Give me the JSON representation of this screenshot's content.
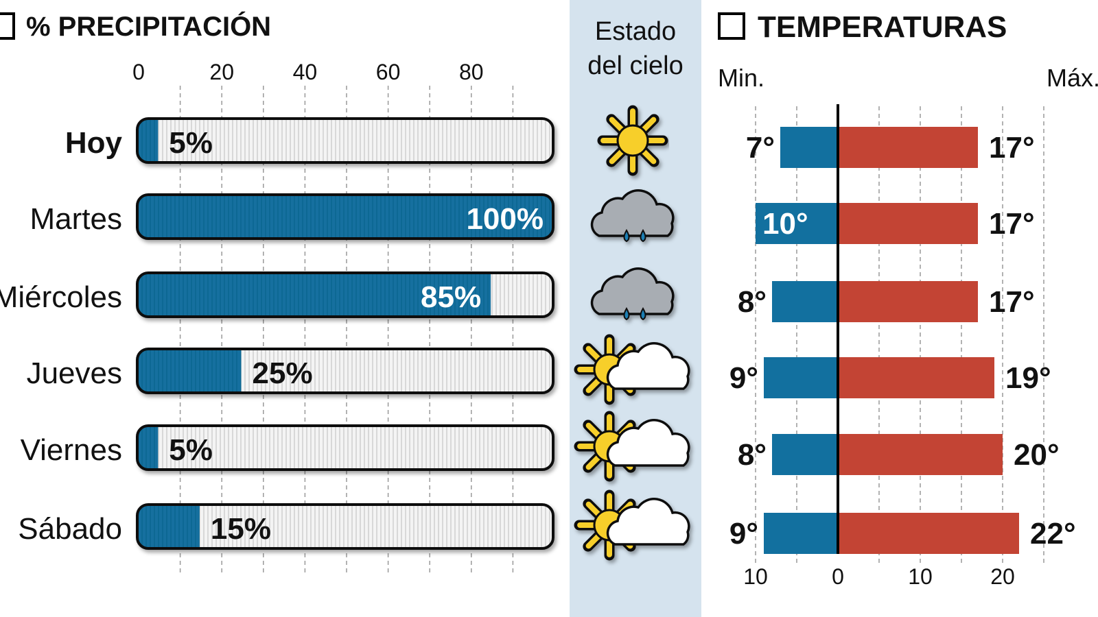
{
  "colors": {
    "min": "#12709f",
    "max": "#c34434",
    "precip_fill": "#12709f",
    "sky_bg": "#d5e3ee",
    "axis": "#000000"
  },
  "chart_data": [
    {
      "type": "bar",
      "title": "% PRECIPITACIÓN",
      "categories": [
        "Hoy",
        "Martes",
        "Miércoles",
        "Jueves",
        "Viernes",
        "Sábado"
      ],
      "values": [
        5,
        100,
        85,
        25,
        5,
        15
      ],
      "value_labels": [
        "5%",
        "100%",
        "85%",
        "25%",
        "5%",
        "15%"
      ],
      "xticks": [
        "0",
        "20",
        "40",
        "60",
        "80"
      ],
      "xlim": [
        0,
        100
      ],
      "grid": true
    },
    {
      "type": "table",
      "title": "Estado del cielo",
      "title_lines": [
        "Estado",
        "del cielo"
      ],
      "categories": [
        "Hoy",
        "Martes",
        "Miércoles",
        "Jueves",
        "Viernes",
        "Sábado"
      ],
      "icons": [
        "sun-icon",
        "rain-cloud-icon",
        "rain-cloud-icon",
        "sun-cloud-icon",
        "sun-cloud-icon",
        "sun-cloud-icon"
      ]
    },
    {
      "type": "bar",
      "title": "TEMPERATURAS",
      "min_label": "Min.",
      "max_label": "Máx.",
      "categories": [
        "Hoy",
        "Martes",
        "Miércoles",
        "Jueves",
        "Viernes",
        "Sábado"
      ],
      "series": [
        {
          "name": "Min.",
          "values": [
            7,
            10,
            8,
            9,
            8,
            9
          ],
          "labels": [
            "7°",
            "10°",
            "8°",
            "9°",
            "8°",
            "9°"
          ]
        },
        {
          "name": "Máx.",
          "values": [
            17,
            17,
            17,
            19,
            20,
            22
          ],
          "labels": [
            "17°",
            "17°",
            "17°",
            "19°",
            "20°",
            "22°"
          ]
        }
      ],
      "xticks": [
        "10",
        "0",
        "10",
        "20"
      ],
      "xlim": [
        -10,
        25
      ],
      "grid": true
    }
  ]
}
